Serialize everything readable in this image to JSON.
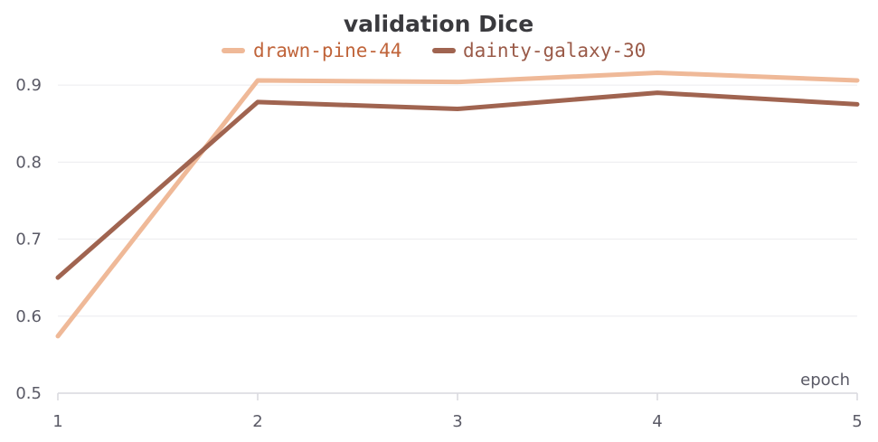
{
  "chart_data": {
    "type": "line",
    "title": "validation Dice",
    "xlabel": "epoch",
    "ylabel": "",
    "x": [
      1,
      2,
      3,
      4,
      5
    ],
    "xticks": [
      "1",
      "2",
      "3",
      "4",
      "5"
    ],
    "yticks": [
      "0.5",
      "0.6",
      "0.7",
      "0.8",
      "0.9"
    ],
    "xlim": [
      1,
      5
    ],
    "ylim": [
      0.5,
      0.94
    ],
    "grid": true,
    "legend_position": "top",
    "series": [
      {
        "name": "drawn-pine-44",
        "color": "#efb998",
        "label_color": "#c0643a",
        "values": [
          0.574,
          0.906,
          0.904,
          0.916,
          0.906
        ]
      },
      {
        "name": "dainty-galaxy-30",
        "color": "#a06450",
        "label_color": "#9a5a48",
        "values": [
          0.65,
          0.878,
          0.869,
          0.89,
          0.875
        ]
      }
    ]
  }
}
